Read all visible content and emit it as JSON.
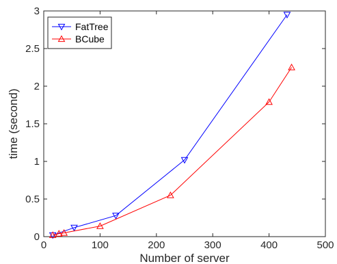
{
  "chart_data": {
    "type": "line",
    "xlabel": "Number of server",
    "ylabel": "time (second)",
    "xlim": [
      0,
      500
    ],
    "ylim": [
      0,
      3
    ],
    "xticks": [
      0,
      100,
      200,
      300,
      400,
      500
    ],
    "yticks": [
      0,
      0.5,
      1,
      1.5,
      2,
      2.5,
      3
    ],
    "grid": false,
    "legend_position": "top-left",
    "series": [
      {
        "name": "FatTree",
        "color": "#0000ff",
        "marker": "triangle-down",
        "x": [
          16,
          54,
          128,
          250,
          432
        ],
        "y": [
          0.02,
          0.12,
          0.28,
          1.02,
          2.95
        ]
      },
      {
        "name": "BCube",
        "color": "#ff0000",
        "marker": "triangle-up",
        "x": [
          16,
          27,
          36,
          100,
          225,
          400,
          440
        ],
        "y": [
          0.02,
          0.04,
          0.05,
          0.14,
          0.55,
          1.79,
          2.25
        ]
      }
    ]
  }
}
